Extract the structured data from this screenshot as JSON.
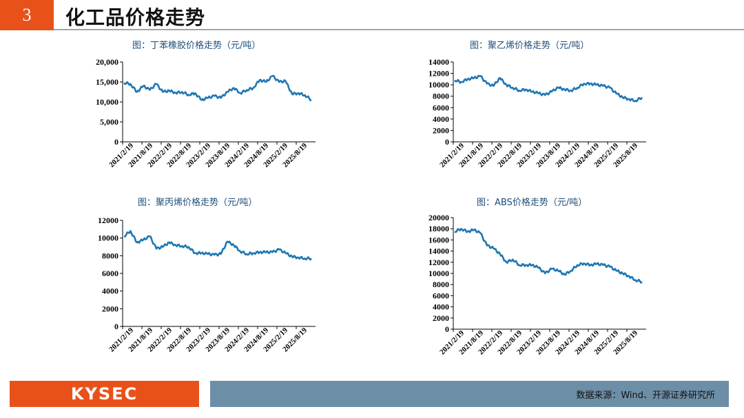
{
  "header": {
    "section_number": "3",
    "title": "化工品价格走势"
  },
  "footer": {
    "logo": "KYSEC",
    "source": "数据来源：Wind、开源证券研究所"
  },
  "colors": {
    "accent": "#e8521a",
    "line": "#1f77b4",
    "footer_bar": "#6d8ea7"
  },
  "x_tick_labels": [
    "2021/2/19",
    "2021/8/19",
    "2022/2/19",
    "2022/8/19",
    "2023/2/19",
    "2023/8/19",
    "2024/2/19",
    "2024/8/19",
    "2025/2/19",
    "2025/8/19"
  ],
  "chart_data": [
    {
      "type": "line",
      "title": "图：丁苯橡胶价格走势（元/吨）",
      "ylim": [
        0,
        20000
      ],
      "yticks": [
        "0",
        "5,000",
        "10,000",
        "15,000",
        "20,000"
      ],
      "x": [
        "2021/2",
        "2021/4",
        "2021/6",
        "2021/8",
        "2021/10",
        "2021/12",
        "2022/2",
        "2022/4",
        "2022/6",
        "2022/8",
        "2022/10",
        "2022/12",
        "2023/2",
        "2023/4",
        "2023/6",
        "2023/8",
        "2023/10",
        "2023/12",
        "2024/2",
        "2024/4",
        "2024/6",
        "2024/8",
        "2024/10",
        "2024/12",
        "2025/2",
        "2025/4",
        "2025/6",
        "2025/8",
        "2025/10",
        "2025/12"
      ],
      "values": [
        14800,
        14500,
        12500,
        14000,
        13000,
        14500,
        12500,
        12800,
        12300,
        12500,
        11800,
        12200,
        10500,
        11000,
        11500,
        11000,
        12500,
        13500,
        12200,
        13000,
        13500,
        15500,
        15000,
        16500,
        15000,
        15200,
        12000,
        12200,
        11700,
        10500
      ]
    },
    {
      "type": "line",
      "title": "图：聚乙烯价格走势（元/吨）",
      "ylim": [
        0,
        14000
      ],
      "yticks": [
        "0",
        "2000",
        "4000",
        "6000",
        "8000",
        "10000",
        "12000",
        "14000"
      ],
      "x": [
        "2021/2",
        "2021/4",
        "2021/6",
        "2021/8",
        "2021/10",
        "2021/12",
        "2022/2",
        "2022/4",
        "2022/6",
        "2022/8",
        "2022/10",
        "2022/12",
        "2023/2",
        "2023/4",
        "2023/6",
        "2023/8",
        "2023/10",
        "2023/12",
        "2024/2",
        "2024/4",
        "2024/6",
        "2024/8",
        "2024/10",
        "2024/12",
        "2025/2",
        "2025/4",
        "2025/6",
        "2025/8",
        "2025/10",
        "2025/12"
      ],
      "values": [
        10800,
        10500,
        11000,
        11200,
        11500,
        10200,
        9800,
        11200,
        10000,
        9500,
        9000,
        9200,
        8800,
        8500,
        8200,
        8800,
        9500,
        9200,
        9000,
        9500,
        10200,
        10200,
        10000,
        9800,
        9500,
        8500,
        7800,
        7500,
        7200,
        7800
      ]
    },
    {
      "type": "line",
      "title": "图：聚丙烯价格走势（元/吨）",
      "ylim": [
        0,
        12000
      ],
      "yticks": [
        "0",
        "2000",
        "4000",
        "6000",
        "8000",
        "10000",
        "12000"
      ],
      "x": [
        "2021/2",
        "2021/4",
        "2021/6",
        "2021/8",
        "2021/10",
        "2021/12",
        "2022/2",
        "2022/4",
        "2022/6",
        "2022/8",
        "2022/10",
        "2022/12",
        "2023/2",
        "2023/4",
        "2023/6",
        "2023/8",
        "2023/10",
        "2023/12",
        "2024/2",
        "2024/4",
        "2024/6",
        "2024/8",
        "2024/10",
        "2024/12",
        "2025/2",
        "2025/4",
        "2025/6",
        "2025/8",
        "2025/10",
        "2025/12"
      ],
      "values": [
        10200,
        10800,
        9500,
        9800,
        10200,
        8800,
        9000,
        9500,
        9200,
        9100,
        9000,
        8300,
        8300,
        8200,
        8100,
        8200,
        9600,
        9200,
        8500,
        8200,
        8300,
        8400,
        8400,
        8400,
        8700,
        8300,
        7900,
        7800,
        7700,
        7700
      ]
    },
    {
      "type": "line",
      "title": "图：ABS价格走势（元/吨）",
      "ylim": [
        0,
        20000
      ],
      "yticks": [
        "0",
        "2000",
        "4000",
        "6000",
        "8000",
        "10000",
        "12000",
        "14000",
        "16000",
        "18000",
        "20000"
      ],
      "x": [
        "2021/2",
        "2021/4",
        "2021/6",
        "2021/8",
        "2021/10",
        "2021/12",
        "2022/2",
        "2022/4",
        "2022/6",
        "2022/8",
        "2022/10",
        "2022/12",
        "2023/2",
        "2023/4",
        "2023/6",
        "2023/8",
        "2023/10",
        "2023/12",
        "2024/2",
        "2024/4",
        "2024/6",
        "2024/8",
        "2024/10",
        "2024/12",
        "2025/2",
        "2025/4",
        "2025/6",
        "2025/8",
        "2025/10",
        "2025/12"
      ],
      "values": [
        17500,
        18000,
        17500,
        17800,
        17200,
        15000,
        14500,
        13500,
        12000,
        12500,
        11500,
        11500,
        11500,
        11000,
        10000,
        10800,
        10500,
        9800,
        10500,
        11500,
        11800,
        11500,
        11700,
        11500,
        11200,
        10500,
        10000,
        9500,
        8800,
        8500
      ]
    }
  ]
}
